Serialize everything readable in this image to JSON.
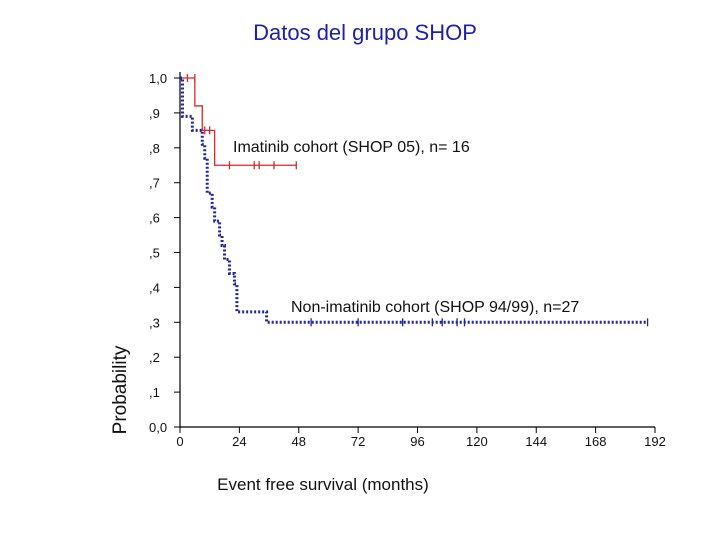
{
  "slide_title": "Datos del grupo SHOP",
  "chart_data": {
    "type": "line",
    "subtype": "kaplan-meier step",
    "title": "",
    "xlabel": "Event free survival (months)",
    "ylabel": "Probability",
    "xlim": [
      0,
      192
    ],
    "ylim": [
      0,
      1
    ],
    "x_ticks": [
      0,
      24,
      48,
      72,
      96,
      120,
      144,
      168,
      192
    ],
    "x_tick_labels": [
      "0",
      "24",
      "48",
      "72",
      "96",
      "120",
      "144",
      "168",
      "192"
    ],
    "y_ticks": [
      0,
      0.1,
      0.2,
      0.3,
      0.4,
      0.5,
      0.6,
      0.7,
      0.8,
      0.9,
      1.0
    ],
    "y_tick_labels": [
      "0,0",
      ",1",
      ",2",
      ",3",
      ",4",
      ",5",
      ",6",
      ",7",
      ",8",
      ",9",
      "1,0"
    ],
    "grid": false,
    "series": [
      {
        "name": "Imatinib cohort (SHOP 05), n= 16",
        "label_position": "top-center",
        "color": "#d42a2a",
        "style": "solid",
        "steps": [
          [
            0,
            1.0
          ],
          [
            6,
            0.92
          ],
          [
            9,
            0.85
          ],
          [
            14,
            0.75
          ],
          [
            47,
            0.75
          ]
        ],
        "censored": [
          [
            3,
            1.0
          ],
          [
            6,
            1.0
          ],
          [
            10,
            0.85
          ],
          [
            12,
            0.85
          ],
          [
            20,
            0.75
          ],
          [
            30,
            0.75
          ],
          [
            32,
            0.75
          ],
          [
            38,
            0.75
          ],
          [
            47,
            0.75
          ]
        ]
      },
      {
        "name": "Non-imatinib cohort (SHOP 94/99), n=27",
        "label_position": "middle-right",
        "color": "#2222a0",
        "style": "dotted",
        "steps": [
          [
            0,
            1.0
          ],
          [
            1,
            0.89
          ],
          [
            5,
            0.85
          ],
          [
            9,
            0.81
          ],
          [
            10,
            0.77
          ],
          [
            11,
            0.67
          ],
          [
            13,
            0.63
          ],
          [
            14,
            0.59
          ],
          [
            16,
            0.55
          ],
          [
            17,
            0.52
          ],
          [
            18,
            0.48
          ],
          [
            20,
            0.44
          ],
          [
            22,
            0.41
          ],
          [
            23,
            0.33
          ],
          [
            35,
            0.3
          ],
          [
            189,
            0.3
          ]
        ],
        "censored": [
          [
            53,
            0.3
          ],
          [
            72,
            0.3
          ],
          [
            90,
            0.3
          ],
          [
            102,
            0.3
          ],
          [
            106,
            0.3
          ],
          [
            112,
            0.3
          ],
          [
            115,
            0.3
          ],
          [
            189,
            0.3
          ]
        ]
      }
    ]
  }
}
